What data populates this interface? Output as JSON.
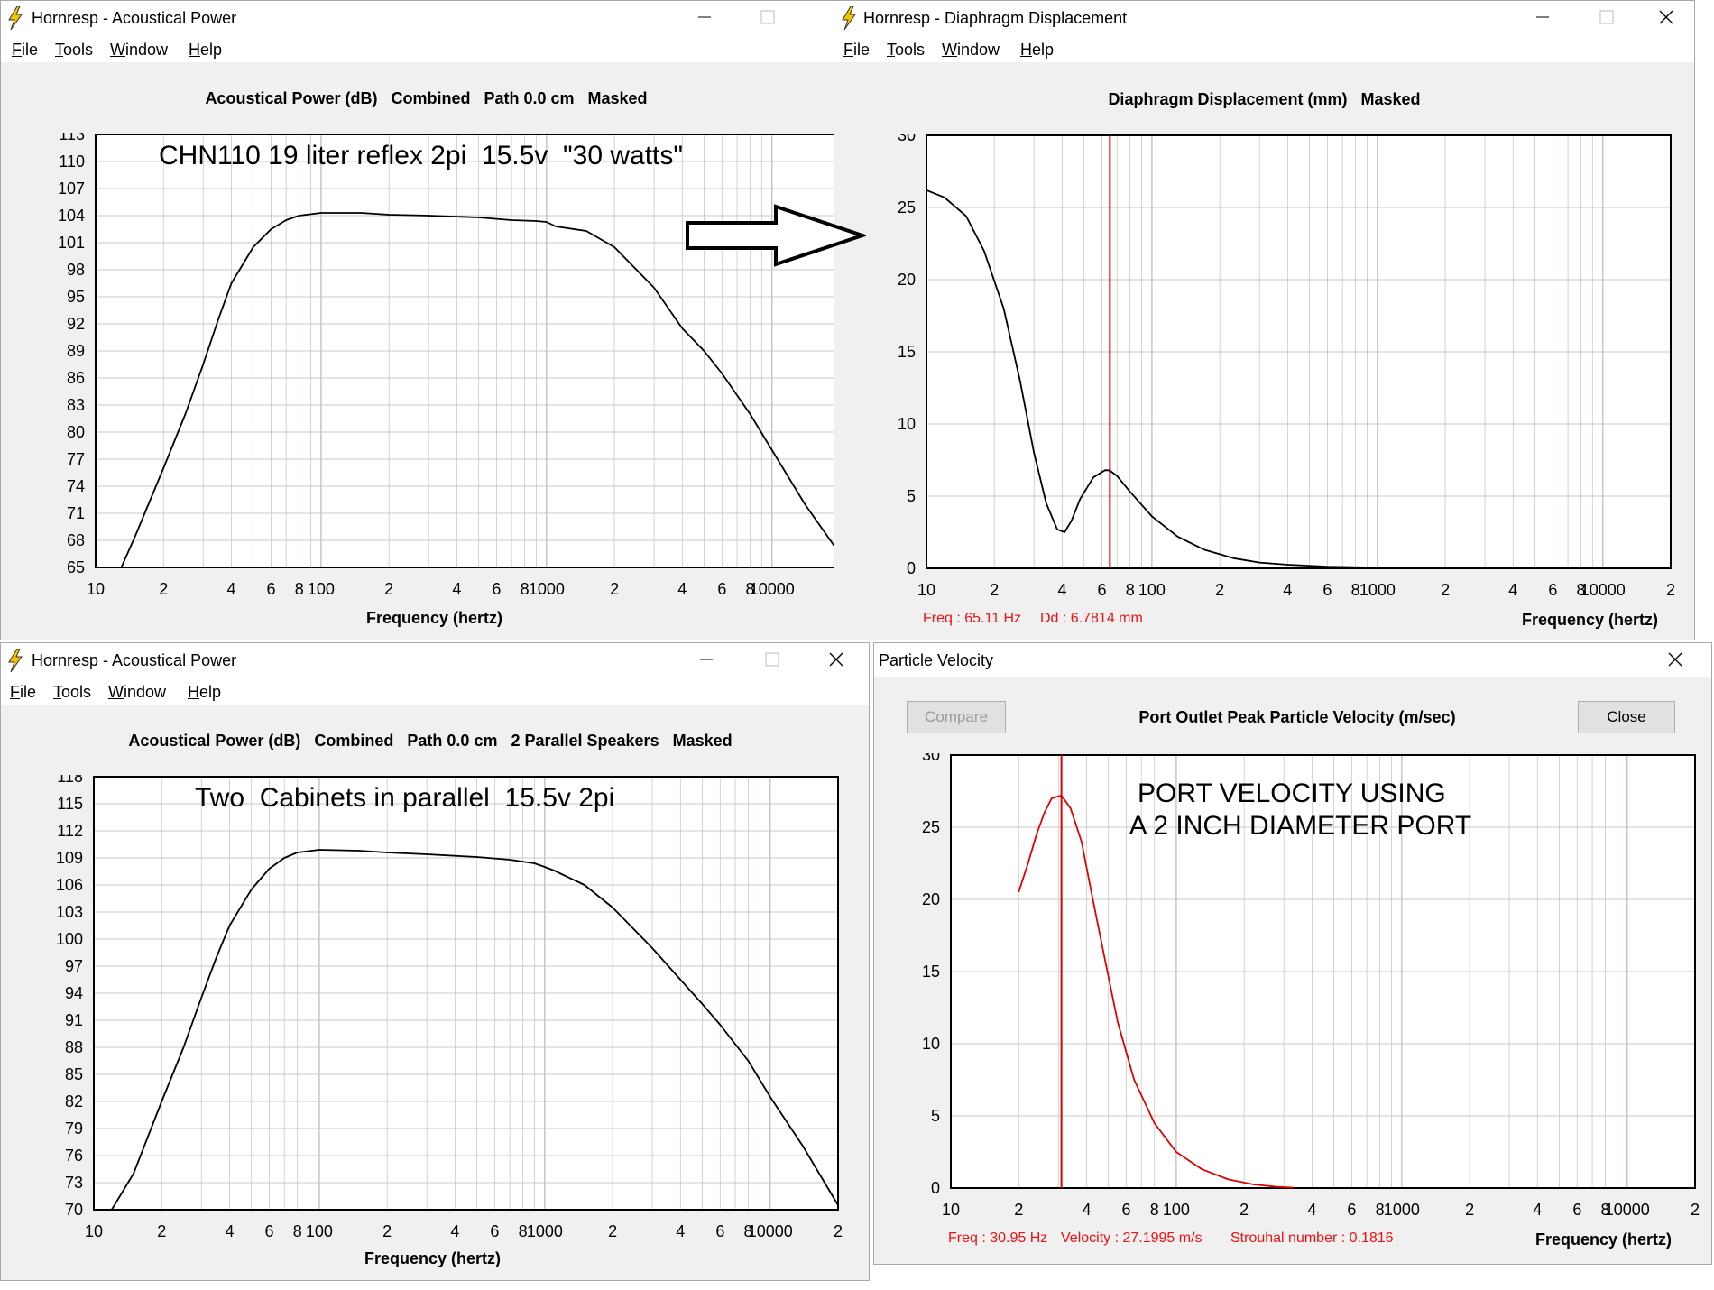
{
  "windows": {
    "power1": {
      "title": "Hornresp - Acoustical Power",
      "menu": [
        "File",
        "Tools",
        "Window",
        "Help"
      ],
      "plot_title": "Acoustical Power (dB)   Combined   Path 0.0 cm   Masked",
      "annotation": "CHN110 19 liter reflex 2pi  15.5v  \"30 watts\"",
      "xlabel": "Frequency (hertz)"
    },
    "displacement": {
      "title": "Hornresp - Diaphragm Displacement",
      "menu": [
        "File",
        "Tools",
        "Window",
        "Help"
      ],
      "plot_title": "Diaphragm Displacement (mm)   Masked",
      "xlabel": "Frequency (hertz)",
      "readout_freq": "Freq : 65.11 Hz",
      "readout_value": "Dd : 6.7814 mm"
    },
    "power2": {
      "title": "Hornresp - Acoustical Power",
      "menu": [
        "File",
        "Tools",
        "Window",
        "Help"
      ],
      "plot_title": "Acoustical Power (dB)   Combined   Path 0.0 cm   2 Parallel Speakers   Masked",
      "annotation": "Two  Cabinets in parallel  15.5v 2pi",
      "xlabel": "Frequency (hertz)"
    },
    "velocity": {
      "title": "Particle Velocity",
      "compare_label": "Compare",
      "close_label": "Close",
      "plot_title": "Port Outlet Peak Particle Velocity (m/sec)",
      "annotation_line1": "PORT VELOCITY USING",
      "annotation_line2": " A 2 INCH DIAMETER PORT",
      "xlabel": "Frequency (hertz)",
      "readout_freq": "Freq : 30.95 Hz",
      "readout_value": "Velocity : 27.1995 m/s",
      "readout_strouhal": "Strouhal number : 0.1816"
    }
  },
  "colors": {
    "window_bg": "#f0f0f0",
    "plot_bg": "#ffffff",
    "grid": "#c8c8c8",
    "curve": "#000000",
    "marker": "#e00000",
    "icon_yellow": "#f5c400"
  },
  "x_tick_labels": [
    "10",
    "2",
    "4",
    "6",
    "8",
    "100",
    "2",
    "4",
    "6",
    "8",
    "1000",
    "2",
    "4",
    "6",
    "8",
    "10000",
    "2"
  ],
  "chart_data": [
    {
      "type": "line",
      "id": "power1",
      "title": "Acoustical Power (dB)   Combined   Path 0.0 cm   Masked",
      "xlabel": "Frequency (hertz)",
      "ylabel": "",
      "x_scale": "log",
      "xlim": [
        10,
        20000
      ],
      "ylim": [
        65,
        113
      ],
      "y_ticks": [
        65,
        68,
        71,
        74,
        77,
        80,
        83,
        86,
        89,
        92,
        95,
        98,
        101,
        104,
        107,
        110,
        113
      ],
      "grid": true,
      "series": [
        {
          "x": [
            13,
            15,
            20,
            25,
            30,
            35,
            40,
            50,
            60,
            70,
            80,
            100,
            150,
            200,
            300,
            500,
            700,
            900,
            1000,
            1100,
            1500,
            2000,
            3000,
            4000,
            5000,
            6000,
            8000,
            10000,
            14000,
            20000
          ],
          "values": [
            65,
            68.5,
            76,
            82,
            87.5,
            92.5,
            96.5,
            100.5,
            102.5,
            103.5,
            104,
            104.3,
            104.3,
            104.1,
            104,
            103.8,
            103.5,
            103.4,
            103.3,
            102.8,
            102.3,
            100.5,
            96,
            91.5,
            89,
            86.5,
            82,
            78,
            72,
            66.5
          ]
        }
      ]
    },
    {
      "type": "line",
      "id": "displacement",
      "title": "Diaphragm Displacement (mm)   Masked",
      "xlabel": "Frequency (hertz)",
      "ylabel": "",
      "x_scale": "log",
      "xlim": [
        10,
        20000
      ],
      "ylim": [
        0,
        30
      ],
      "y_ticks": [
        0,
        5,
        10,
        15,
        20,
        25,
        30
      ],
      "grid": true,
      "marker_x": 65.11,
      "series": [
        {
          "x": [
            10,
            12,
            15,
            18,
            22,
            26,
            30,
            34,
            38,
            41,
            44,
            48,
            55,
            62,
            65,
            70,
            80,
            100,
            130,
            170,
            230,
            300,
            400,
            600,
            1000,
            2000,
            5000,
            20000
          ],
          "values": [
            26.2,
            25.7,
            24.4,
            22,
            18,
            13,
            8,
            4.5,
            2.7,
            2.5,
            3.3,
            4.8,
            6.3,
            6.8,
            6.78,
            6.4,
            5.3,
            3.6,
            2.2,
            1.3,
            0.7,
            0.4,
            0.25,
            0.12,
            0.05,
            0.02,
            0.01,
            0
          ]
        }
      ]
    },
    {
      "type": "line",
      "id": "power2",
      "title": "Acoustical Power (dB)   Combined   Path 0.0 cm   2 Parallel Speakers   Masked",
      "xlabel": "Frequency (hertz)",
      "ylabel": "",
      "x_scale": "log",
      "xlim": [
        10,
        20000
      ],
      "ylim": [
        70,
        118
      ],
      "y_ticks": [
        70,
        73,
        76,
        79,
        82,
        85,
        88,
        91,
        94,
        97,
        100,
        103,
        106,
        109,
        112,
        115,
        118
      ],
      "grid": true,
      "series": [
        {
          "x": [
            12,
            15,
            20,
            25,
            30,
            35,
            40,
            50,
            60,
            70,
            80,
            100,
            150,
            200,
            300,
            500,
            700,
            900,
            1000,
            1100,
            1500,
            2000,
            3000,
            4000,
            5000,
            6000,
            8000,
            10000,
            14000,
            20000
          ],
          "values": [
            70,
            74,
            82,
            88,
            93.5,
            98,
            101.5,
            105.5,
            107.8,
            109,
            109.6,
            109.9,
            109.8,
            109.6,
            109.4,
            109.1,
            108.8,
            108.4,
            108,
            107.6,
            106,
            103.5,
            99,
            95.5,
            92.8,
            90.5,
            86.5,
            82.5,
            77,
            70.5
          ]
        }
      ]
    },
    {
      "type": "line",
      "id": "velocity",
      "title": "Port Outlet Peak Particle Velocity (m/sec)",
      "xlabel": "Frequency (hertz)",
      "ylabel": "",
      "x_scale": "log",
      "xlim": [
        10,
        20000
      ],
      "ylim": [
        0,
        30
      ],
      "y_ticks": [
        0,
        5,
        10,
        15,
        20,
        25,
        30
      ],
      "grid": true,
      "marker_x": 30.95,
      "series": [
        {
          "x": [
            20,
            22,
            24,
            26,
            28,
            30.95,
            34,
            38,
            42,
            48,
            55,
            65,
            80,
            100,
            130,
            170,
            220,
            280,
            330
          ],
          "values": [
            20.5,
            22.5,
            24.5,
            26,
            27,
            27.2,
            26.3,
            24,
            20.5,
            16,
            11.5,
            7.5,
            4.5,
            2.5,
            1.3,
            0.6,
            0.25,
            0.08,
            0.03
          ]
        }
      ]
    }
  ]
}
